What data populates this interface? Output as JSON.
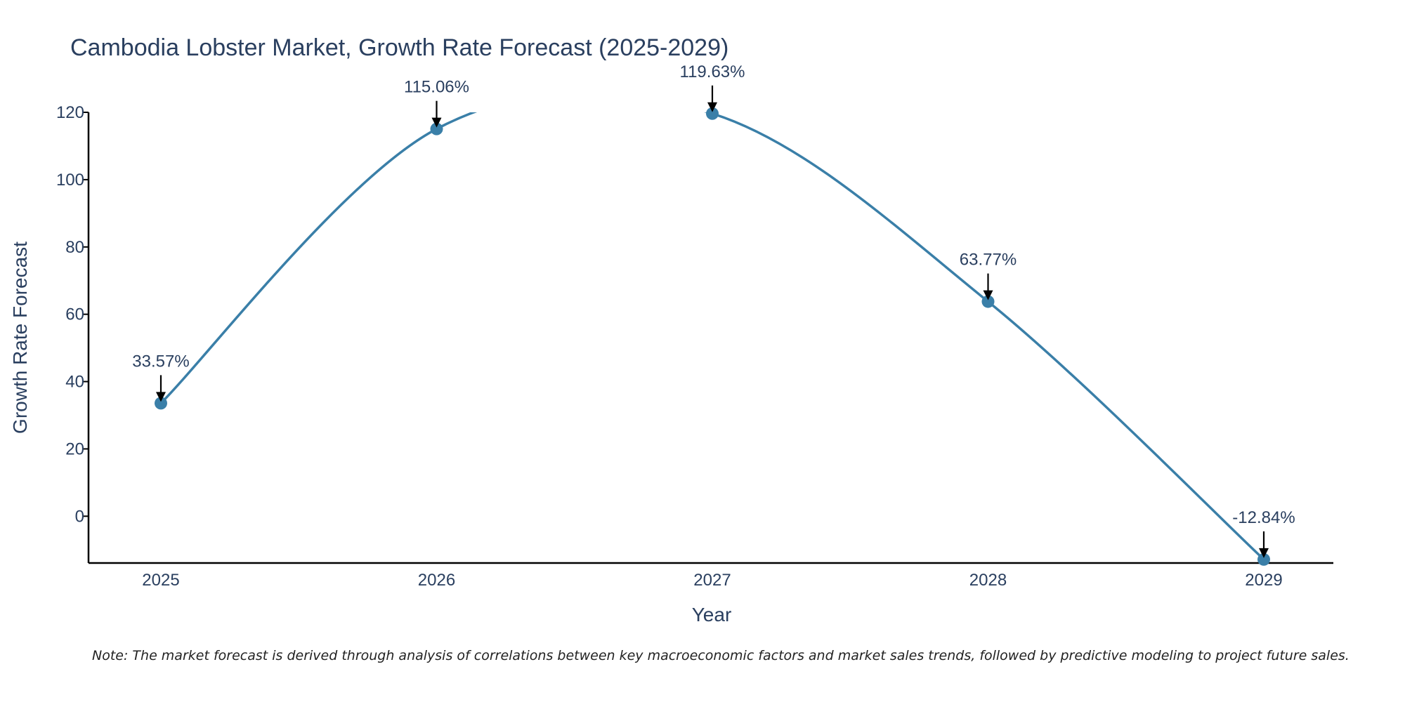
{
  "colors": {
    "line": "#3a7fa8",
    "marker": "#3a7fa8",
    "axis": "#000000",
    "text": "#2a3f5f",
    "arrow": "#000000"
  },
  "note": "Note: The market forecast is derived through analysis of correlations between key macroeconomic factors and market sales trends, followed by predictive modeling to project future sales.",
  "chart_data": {
    "type": "line",
    "title": "Cambodia Lobster Market, Growth Rate Forecast (2025-2029)",
    "xlabel": "Year",
    "ylabel": "Growth Rate Forecast",
    "categories": [
      "2025",
      "2026",
      "2027",
      "2028",
      "2029"
    ],
    "series": [
      {
        "name": "Growth Rate Forecast",
        "values": [
          33.57,
          115.06,
          119.63,
          63.77,
          -12.84
        ]
      }
    ],
    "data_labels": [
      "33.57%",
      "115.06%",
      "119.63%",
      "63.77%",
      "-12.84%"
    ],
    "yticks": [
      0,
      20,
      40,
      60,
      80,
      100,
      120
    ],
    "ylim": [
      -13.9,
      120
    ],
    "grid": false,
    "legend": "none",
    "line_shape": "spline"
  }
}
